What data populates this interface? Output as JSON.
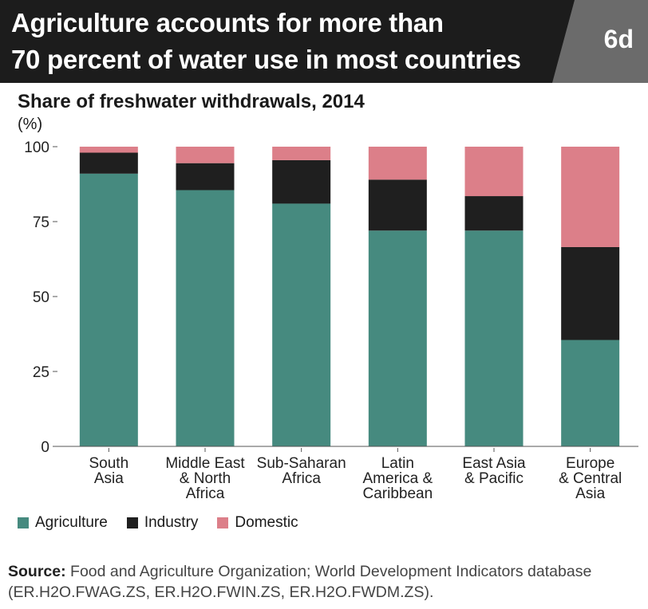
{
  "header": {
    "title_line1": "Agriculture accounts for more than",
    "title_line2": "70 percent of water use in most countries",
    "badge": "6d"
  },
  "colors": {
    "agriculture": "#468a7f",
    "industry": "#1f1f1f",
    "domestic": "#dc7f89",
    "header_bg": "#1c1c1c",
    "badge_bg": "#6b6b6b"
  },
  "chart_data": {
    "type": "bar",
    "stacked": true,
    "title": "Share of freshwater withdrawals, 2014",
    "ylabel": "(%)",
    "ylim": [
      0,
      100
    ],
    "yticks": [
      0,
      25,
      50,
      75,
      100
    ],
    "categories": [
      [
        "South",
        "Asia"
      ],
      [
        "Middle East",
        "& North",
        "Africa"
      ],
      [
        "Sub-Saharan",
        "Africa"
      ],
      [
        "Latin",
        "America &",
        "Caribbean"
      ],
      [
        "East Asia",
        "& Pacific"
      ],
      [
        "Europe",
        "& Central",
        "Asia"
      ]
    ],
    "series": [
      {
        "name": "Agriculture",
        "color": "#468a7f",
        "values": [
          91,
          85.5,
          81,
          72,
          72,
          35.5
        ]
      },
      {
        "name": "Industry",
        "color": "#1f1f1f",
        "values": [
          7,
          9,
          14.5,
          17,
          11.5,
          31
        ]
      },
      {
        "name": "Domestic",
        "color": "#dc7f89",
        "values": [
          2,
          5.5,
          4.5,
          11,
          16.5,
          33.5
        ]
      }
    ],
    "grid": false,
    "legend_position": "bottom-left"
  },
  "source": {
    "label": "Source:",
    "text": " Food and Agriculture Organization; World Development Indicators database (ER.H2O.FWAG.ZS, ER.H2O.FWIN.ZS, ER.H2O.FWDM.ZS)."
  }
}
